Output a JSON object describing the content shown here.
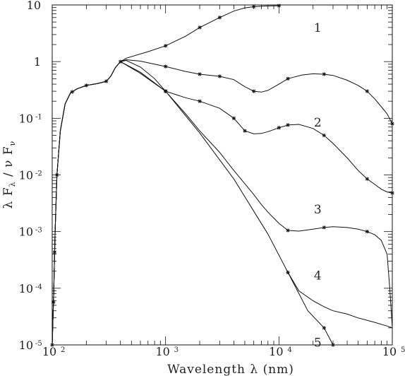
{
  "chart_data": {
    "type": "line",
    "xscale": "log",
    "yscale": "log",
    "xlim": [
      100,
      100000
    ],
    "ylim": [
      1e-05,
      10
    ],
    "grid": false,
    "xlabel": "Wavelength λ (nm)",
    "ylabel_parts": [
      "λ F",
      "λ",
      " / ν F",
      "ν"
    ],
    "x_ticks": [
      {
        "value": 100,
        "base": "10",
        "exp": "2"
      },
      {
        "value": 1000,
        "base": "10",
        "exp": "3"
      },
      {
        "value": 10000,
        "base": "10",
        "exp": "4"
      },
      {
        "value": 100000,
        "base": "10",
        "exp": "5"
      }
    ],
    "y_ticks": [
      {
        "value": 10,
        "base": "10",
        "exp": ""
      },
      {
        "value": 1,
        "base": "1",
        "exp": ""
      },
      {
        "value": 0.1,
        "base": "10",
        "exp": "-1"
      },
      {
        "value": 0.01,
        "base": "10",
        "exp": "-2"
      },
      {
        "value": 0.001,
        "base": "10",
        "exp": "-3"
      },
      {
        "value": 0.0001,
        "base": "10",
        "exp": "-4"
      },
      {
        "value": 1e-05,
        "base": "10",
        "exp": "-5"
      }
    ],
    "curve_labels": [
      {
        "text": "1",
        "x": 22000,
        "y": 4.0
      },
      {
        "text": "2",
        "x": 22000,
        "y": 0.085
      },
      {
        "text": "3",
        "x": 22000,
        "y": 0.0025
      },
      {
        "text": "4",
        "x": 22000,
        "y": 0.00017
      },
      {
        "text": "5",
        "x": 22000,
        "y": 1.1e-05
      }
    ],
    "common": {
      "x": [
        100,
        103,
        106,
        110,
        118,
        130,
        145,
        165,
        200,
        250,
        300,
        330,
        360,
        400
      ],
      "y": [
        1e-05,
        8e-05,
        0.001,
        0.01,
        0.06,
        0.18,
        0.28,
        0.33,
        0.38,
        0.41,
        0.45,
        0.56,
        0.78,
        1.0
      ]
    },
    "series": [
      {
        "x": [
          400,
          450,
          700,
          1000,
          1500,
          2000,
          3000,
          4000,
          5000,
          6000,
          7000,
          8000,
          10000
        ],
        "y": [
          1.0,
          1.15,
          1.5,
          1.9,
          2.8,
          4.0,
          6.0,
          7.8,
          8.9,
          9.3,
          9.5,
          9.6,
          9.7
        ],
        "markers_x": [
          1000,
          2000,
          3000,
          6000,
          10000
        ]
      },
      {
        "x": [
          400,
          450,
          600,
          1000,
          1500,
          2000,
          3000,
          4000,
          5000,
          6000,
          7000,
          8000,
          10000,
          12000,
          16000,
          20000,
          25000,
          30000,
          40000,
          50000,
          60000,
          70000,
          80000,
          90000,
          100000
        ],
        "y": [
          1.0,
          1.08,
          1.02,
          0.82,
          0.67,
          0.6,
          0.55,
          0.48,
          0.36,
          0.3,
          0.29,
          0.31,
          0.4,
          0.5,
          0.58,
          0.61,
          0.6,
          0.57,
          0.47,
          0.38,
          0.3,
          0.22,
          0.16,
          0.12,
          0.08
        ],
        "markers_x": [
          1000,
          2000,
          3000,
          6000,
          12000,
          25000,
          60000,
          100000
        ]
      },
      {
        "x": [
          400,
          450,
          600,
          800,
          1000,
          1500,
          2000,
          3000,
          4000,
          5000,
          6000,
          7000,
          8000,
          10000,
          12000,
          15000,
          20000,
          25000,
          30000,
          40000,
          50000,
          60000,
          70000,
          80000,
          90000,
          100000
        ],
        "y": [
          1.0,
          1.05,
          0.8,
          0.5,
          0.3,
          0.23,
          0.2,
          0.15,
          0.1,
          0.06,
          0.053,
          0.054,
          0.058,
          0.068,
          0.076,
          0.078,
          0.066,
          0.05,
          0.036,
          0.02,
          0.012,
          0.0085,
          0.0068,
          0.0056,
          0.005,
          0.0048
        ],
        "markers_x": [
          1000,
          2000,
          4000,
          5000,
          10000,
          12000,
          25000,
          60000,
          100000
        ]
      },
      {
        "x": [
          400,
          600,
          1000,
          1500,
          2000,
          3000,
          4000,
          5000,
          6000,
          7000,
          8000,
          10000,
          12000,
          15000,
          20000,
          25000,
          30000,
          40000,
          50000,
          60000,
          70000,
          80000,
          90000,
          95000,
          100000,
          90000,
          70000,
          50000,
          40000,
          30000,
          25000,
          20000,
          15000,
          12000
        ],
        "y": [
          1.0,
          0.65,
          0.3,
          0.12,
          0.06,
          0.025,
          0.012,
          0.007,
          0.0045,
          0.003,
          0.0022,
          0.0014,
          0.00105,
          0.00102,
          0.0011,
          0.00118,
          0.00122,
          0.00118,
          0.0011,
          0.001,
          0.00088,
          0.0007,
          0.0004,
          0.0001,
          2e-05,
          2.15e-05,
          2.5e-05,
          3e-05,
          3.5e-05,
          4e-05,
          4.7e-05,
          6e-05,
          9e-05,
          0.00019
        ],
        "markers_x": [
          1000,
          12000,
          25000,
          60000
        ]
      },
      {
        "x": [
          400,
          600,
          1000,
          2000,
          4000,
          8000,
          12000,
          18000,
          25000,
          30000
        ],
        "y": [
          1.0,
          0.62,
          0.3,
          0.055,
          0.0085,
          0.0009,
          0.00019,
          4e-05,
          2e-05,
          1e-05
        ],
        "markers_x": [
          1000,
          12000,
          25000,
          30000
        ]
      }
    ]
  }
}
